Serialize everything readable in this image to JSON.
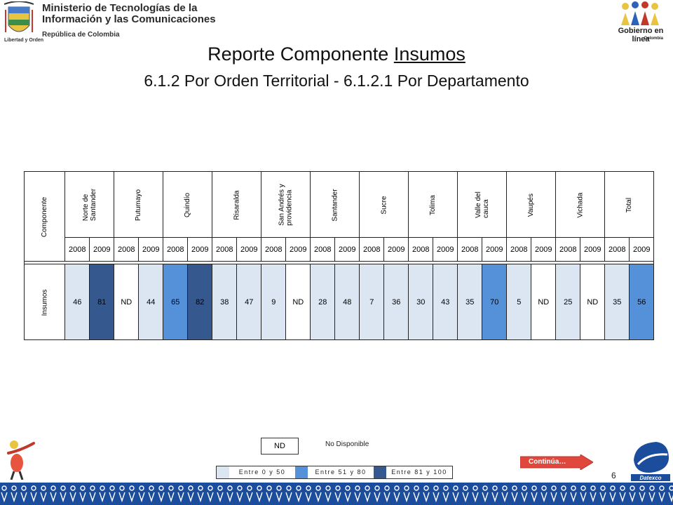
{
  "header": {
    "ministry_line1": "Ministerio de Tecnologías de la",
    "ministry_line2": "Información y las Comunicaciones",
    "ministry_sub": "República de Colombia",
    "motto": "Libertad y Orden",
    "gel_name": "Gobierno en línea",
    "gel_country": "Colombia"
  },
  "title": {
    "prefix": "Reporte Componente ",
    "emphasis": "Insumos",
    "subtitle": "6.1.2 Por Orden Territorial  - 6.1.2.1 Por Departamento"
  },
  "table": {
    "component_header": "Componente",
    "row_label": "Insumos",
    "departments": [
      {
        "name": "Norte de\nSantander",
        "values": [
          {
            "year": "2008",
            "value": "46",
            "level": "c0"
          },
          {
            "year": "2009",
            "value": "81",
            "level": "c2"
          }
        ]
      },
      {
        "name": "Putumayo",
        "values": [
          {
            "year": "2008",
            "value": "ND",
            "level": "cnd"
          },
          {
            "year": "2009",
            "value": "44",
            "level": "c0"
          }
        ]
      },
      {
        "name": "Quindío",
        "values": [
          {
            "year": "2008",
            "value": "65",
            "level": "c1"
          },
          {
            "year": "2009",
            "value": "82",
            "level": "c2"
          }
        ]
      },
      {
        "name": "Risaralda",
        "values": [
          {
            "year": "2008",
            "value": "38",
            "level": "c0"
          },
          {
            "year": "2009",
            "value": "47",
            "level": "c0"
          }
        ]
      },
      {
        "name": "San Andrés y\nprovidencia",
        "values": [
          {
            "year": "2008",
            "value": "9",
            "level": "c0"
          },
          {
            "year": "2009",
            "value": "ND",
            "level": "cnd"
          }
        ]
      },
      {
        "name": "Santander",
        "values": [
          {
            "year": "2008",
            "value": "28",
            "level": "c0"
          },
          {
            "year": "2009",
            "value": "48",
            "level": "c0"
          }
        ]
      },
      {
        "name": "Sucre",
        "values": [
          {
            "year": "2008",
            "value": "7",
            "level": "c0"
          },
          {
            "year": "2009",
            "value": "36",
            "level": "c0"
          }
        ]
      },
      {
        "name": "Tolima",
        "values": [
          {
            "year": "2008",
            "value": "30",
            "level": "c0"
          },
          {
            "year": "2009",
            "value": "43",
            "level": "c0"
          }
        ]
      },
      {
        "name": "Valle del\ncauca",
        "values": [
          {
            "year": "2008",
            "value": "35",
            "level": "c0"
          },
          {
            "year": "2009",
            "value": "70",
            "level": "c1"
          }
        ]
      },
      {
        "name": "Vaupés",
        "values": [
          {
            "year": "2008",
            "value": "5",
            "level": "c0"
          },
          {
            "year": "2009",
            "value": "ND",
            "level": "cnd"
          }
        ]
      },
      {
        "name": "Vichada",
        "values": [
          {
            "year": "2008",
            "value": "25",
            "level": "c0"
          },
          {
            "year": "2009",
            "value": "ND",
            "level": "cnd"
          }
        ]
      },
      {
        "name": "Total",
        "values": [
          {
            "year": "2008",
            "value": "35",
            "level": "c0"
          },
          {
            "year": "2009",
            "value": "56",
            "level": "c1"
          }
        ]
      }
    ]
  },
  "legend": {
    "nd_box": "ND",
    "nd_text": "No Disponible",
    "ranges": [
      {
        "label": "Entre 0 y 50",
        "color": "#dce6f2"
      },
      {
        "label": "Entre 51 y 80",
        "color": "#5591d9"
      },
      {
        "label": "Entre 81 y 100",
        "color": "#35588f"
      }
    ]
  },
  "nav": {
    "continue_label": "Continúa…",
    "page_number": "6"
  },
  "footer": {
    "datexco": "Datexco"
  },
  "colors": {
    "level_low": "#dce6f2",
    "level_mid": "#5591d9",
    "level_high": "#35588f",
    "footer_band": "#1b4d9c",
    "continue_button": "#e0483e"
  }
}
